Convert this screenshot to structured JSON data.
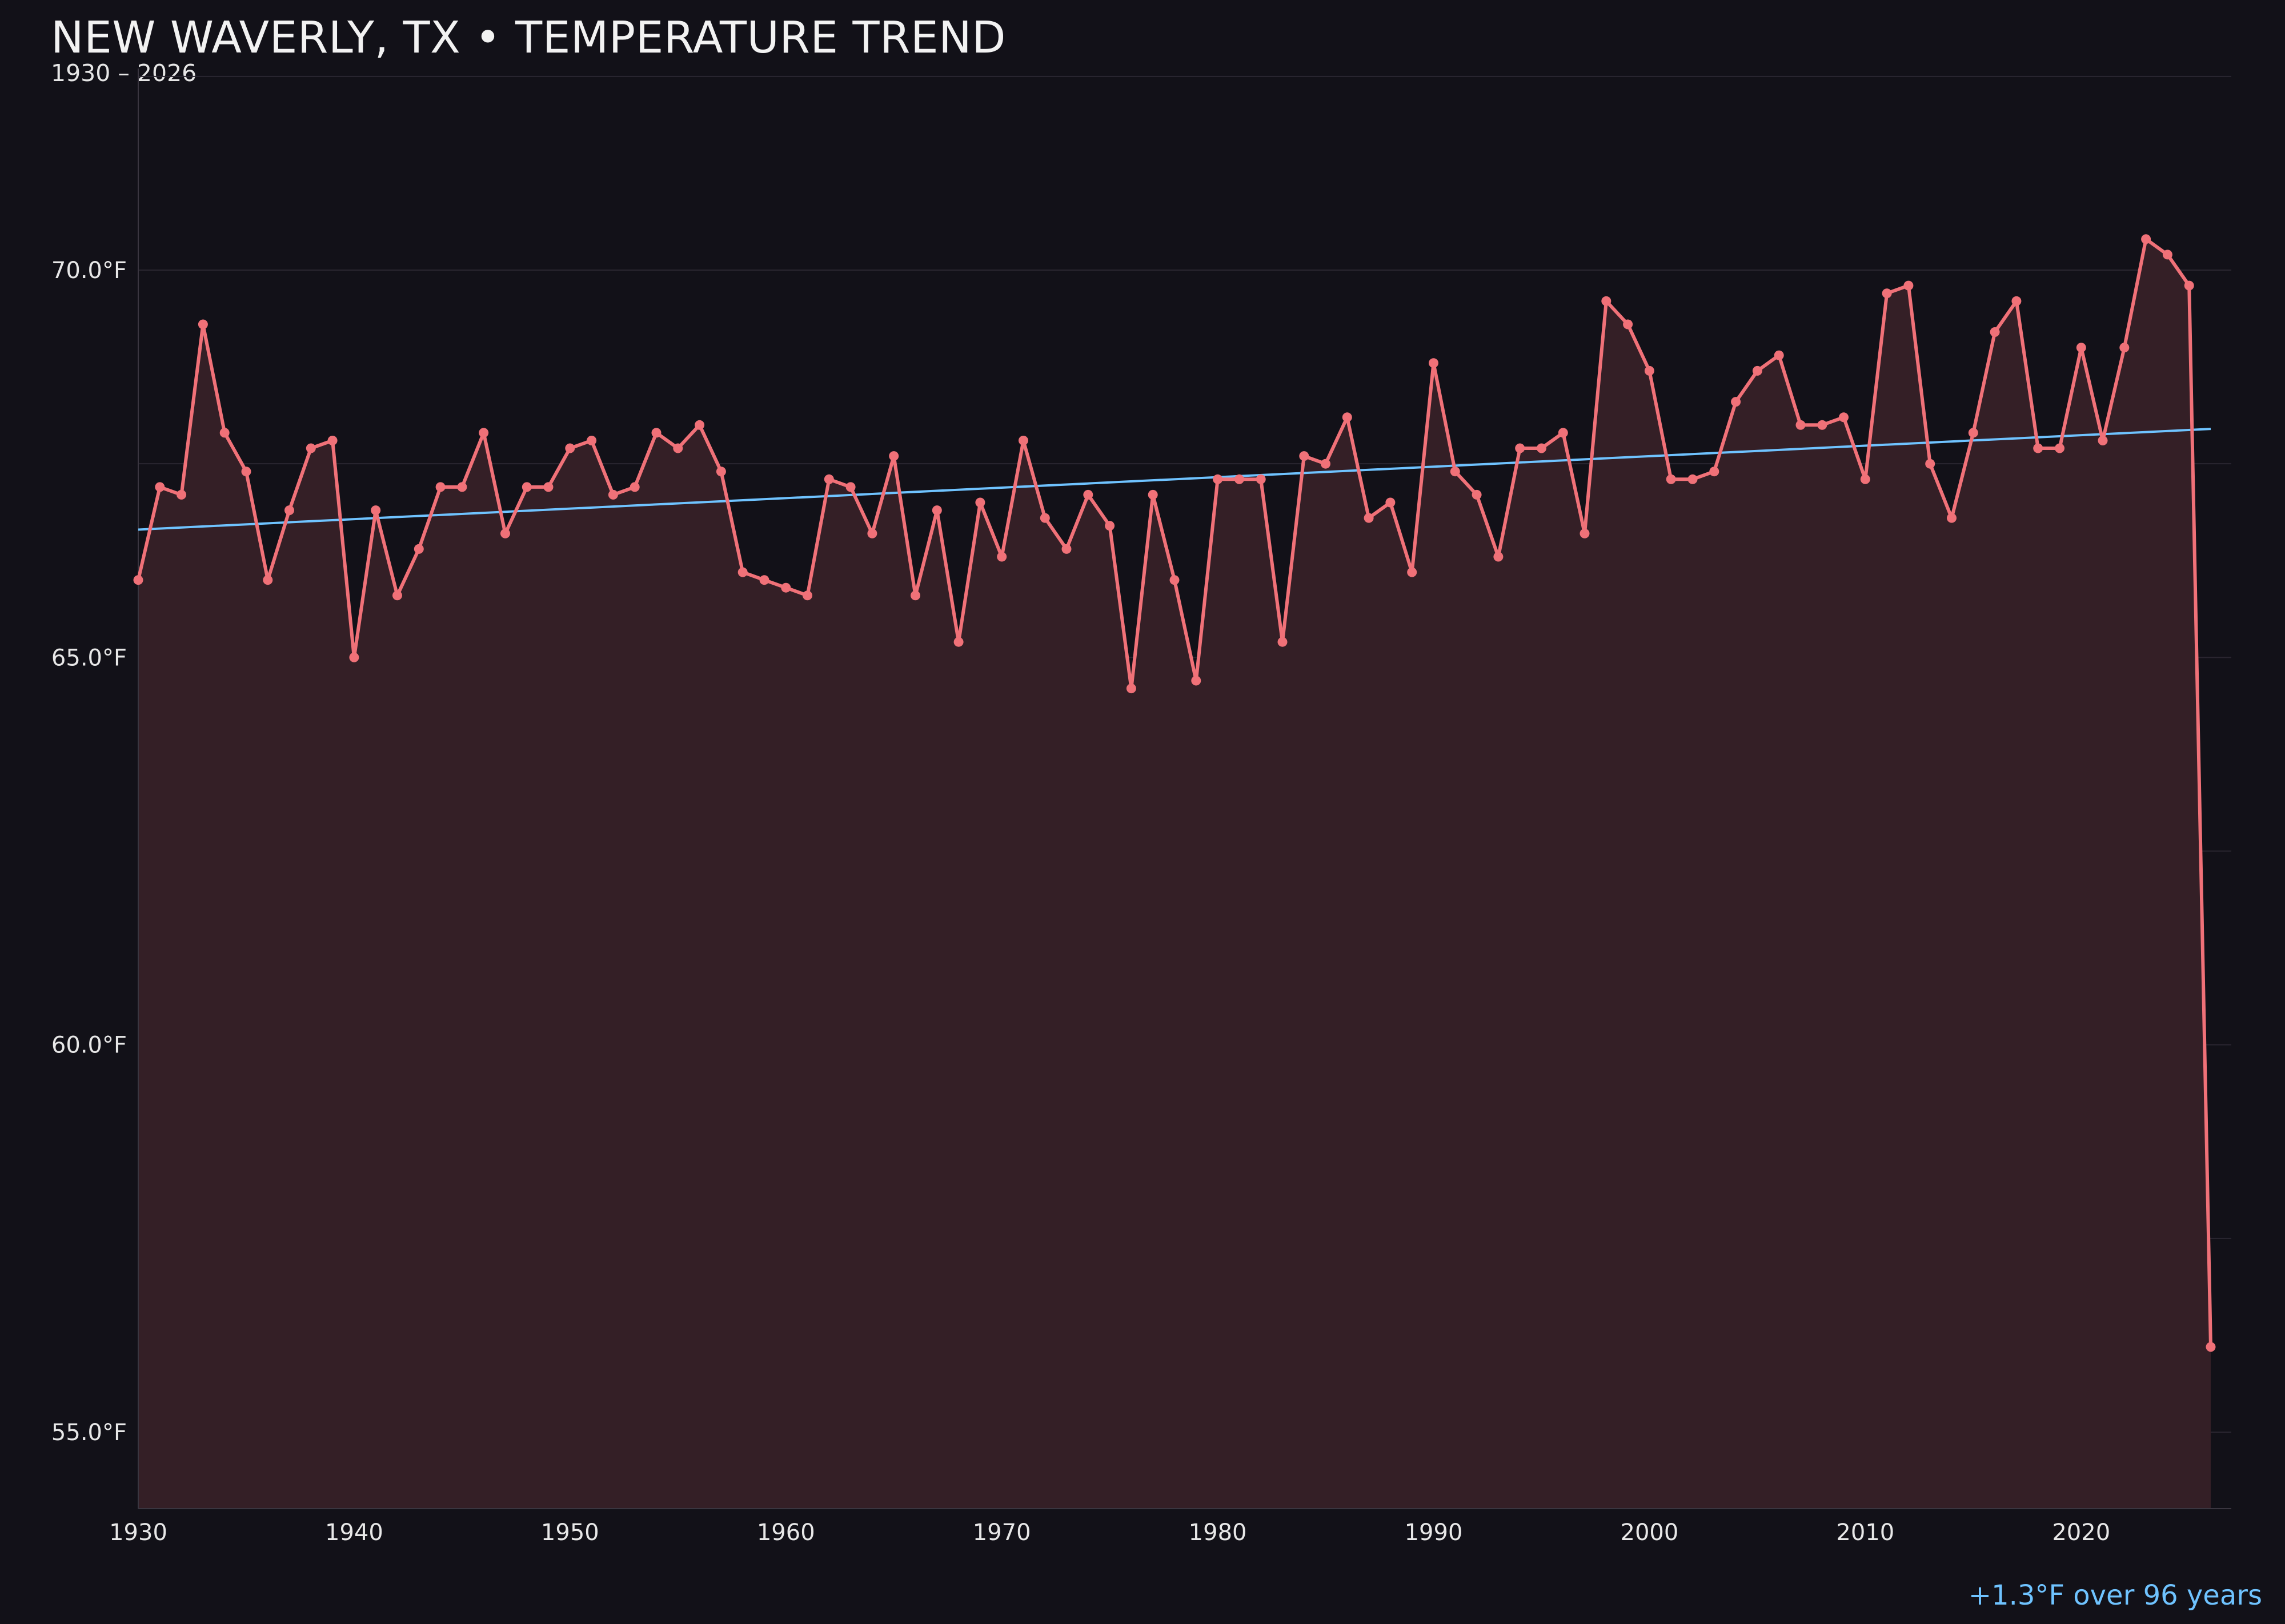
{
  "chart_data": {
    "type": "line",
    "title": "NEW WAVERLY, TX • TEMPERATURE TREND",
    "subtitle": "1930 – 2026",
    "xlabel": "",
    "ylabel": "",
    "x_ticks": [
      "1930",
      "1940",
      "1950",
      "1960",
      "1970",
      "1980",
      "1990",
      "2000",
      "2010",
      "2020"
    ],
    "y_ticks": [
      "55.0°F",
      "60.0°F",
      "65.0°F",
      "70.0°F"
    ],
    "xlim": [
      1930,
      2027
    ],
    "ylim": [
      54,
      72.5
    ],
    "grid": true,
    "series": [
      {
        "kind": "annual-mean",
        "color": "#f07178",
        "points": [
          [
            1930,
            66.0
          ],
          [
            1931,
            67.2
          ],
          [
            1932,
            67.1
          ],
          [
            1933,
            69.3
          ],
          [
            1934,
            67.9
          ],
          [
            1935,
            67.4
          ],
          [
            1936,
            66.0
          ],
          [
            1937,
            66.9
          ],
          [
            1938,
            67.7
          ],
          [
            1939,
            67.8
          ],
          [
            1940,
            65.0
          ],
          [
            1941,
            66.9
          ],
          [
            1942,
            65.8
          ],
          [
            1943,
            66.4
          ],
          [
            1944,
            67.2
          ],
          [
            1945,
            67.2
          ],
          [
            1946,
            67.9
          ],
          [
            1947,
            66.6
          ],
          [
            1948,
            67.2
          ],
          [
            1949,
            67.2
          ],
          [
            1950,
            67.7
          ],
          [
            1951,
            67.8
          ],
          [
            1952,
            67.1
          ],
          [
            1953,
            67.2
          ],
          [
            1954,
            67.9
          ],
          [
            1955,
            67.7
          ],
          [
            1956,
            68.0
          ],
          [
            1957,
            67.4
          ],
          [
            1958,
            66.1
          ],
          [
            1959,
            66.0
          ],
          [
            1960,
            65.9
          ],
          [
            1961,
            65.8
          ],
          [
            1962,
            67.3
          ],
          [
            1963,
            67.2
          ],
          [
            1964,
            66.6
          ],
          [
            1965,
            67.6
          ],
          [
            1966,
            65.8
          ],
          [
            1967,
            66.9
          ],
          [
            1968,
            65.2
          ],
          [
            1969,
            67.0
          ],
          [
            1970,
            66.3
          ],
          [
            1971,
            67.8
          ],
          [
            1972,
            66.8
          ],
          [
            1973,
            66.4
          ],
          [
            1974,
            67.1
          ],
          [
            1975,
            66.7
          ],
          [
            1976,
            64.6
          ],
          [
            1977,
            67.1
          ],
          [
            1978,
            66.0
          ],
          [
            1979,
            64.7
          ],
          [
            1980,
            67.3
          ],
          [
            1981,
            67.3
          ],
          [
            1982,
            67.3
          ],
          [
            1983,
            65.2
          ],
          [
            1984,
            67.6
          ],
          [
            1985,
            67.5
          ],
          [
            1986,
            68.1
          ],
          [
            1987,
            66.8
          ],
          [
            1988,
            67.0
          ],
          [
            1989,
            66.1
          ],
          [
            1990,
            68.8
          ],
          [
            1991,
            67.4
          ],
          [
            1992,
            67.1
          ],
          [
            1993,
            66.3
          ],
          [
            1994,
            67.7
          ],
          [
            1995,
            67.7
          ],
          [
            1996,
            67.9
          ],
          [
            1997,
            66.6
          ],
          [
            1998,
            69.6
          ],
          [
            1999,
            69.3
          ],
          [
            2000,
            68.7
          ],
          [
            2001,
            67.3
          ],
          [
            2002,
            67.3
          ],
          [
            2003,
            67.4
          ],
          [
            2004,
            68.3
          ],
          [
            2005,
            68.7
          ],
          [
            2006,
            68.9
          ],
          [
            2007,
            68.0
          ],
          [
            2008,
            68.0
          ],
          [
            2009,
            68.1
          ],
          [
            2010,
            67.3
          ],
          [
            2011,
            69.7
          ],
          [
            2012,
            69.8
          ],
          [
            2013,
            67.5
          ],
          [
            2014,
            66.8
          ],
          [
            2015,
            67.9
          ],
          [
            2016,
            69.2
          ],
          [
            2017,
            69.6
          ],
          [
            2018,
            67.7
          ],
          [
            2019,
            67.7
          ],
          [
            2020,
            69.0
          ],
          [
            2021,
            67.8
          ],
          [
            2022,
            69.0
          ],
          [
            2023,
            70.4
          ],
          [
            2024,
            70.2
          ],
          [
            2025,
            69.8
          ],
          [
            2026,
            56.1
          ]
        ]
      },
      {
        "kind": "linear-trend",
        "color": "#6fc3ff",
        "points": [
          [
            1930,
            66.65
          ],
          [
            2026,
            67.95
          ]
        ]
      }
    ],
    "annotation": "+1.3°F over 96 years"
  },
  "colors": {
    "background": "#121118",
    "grid": "#2a2630",
    "axis": "#3a3640",
    "series_line": "#f07178",
    "area_fill": "#341f26",
    "trend_line": "#6fc3ff",
    "text": "#e8e8e8",
    "annotation": "#6fc3ff"
  }
}
